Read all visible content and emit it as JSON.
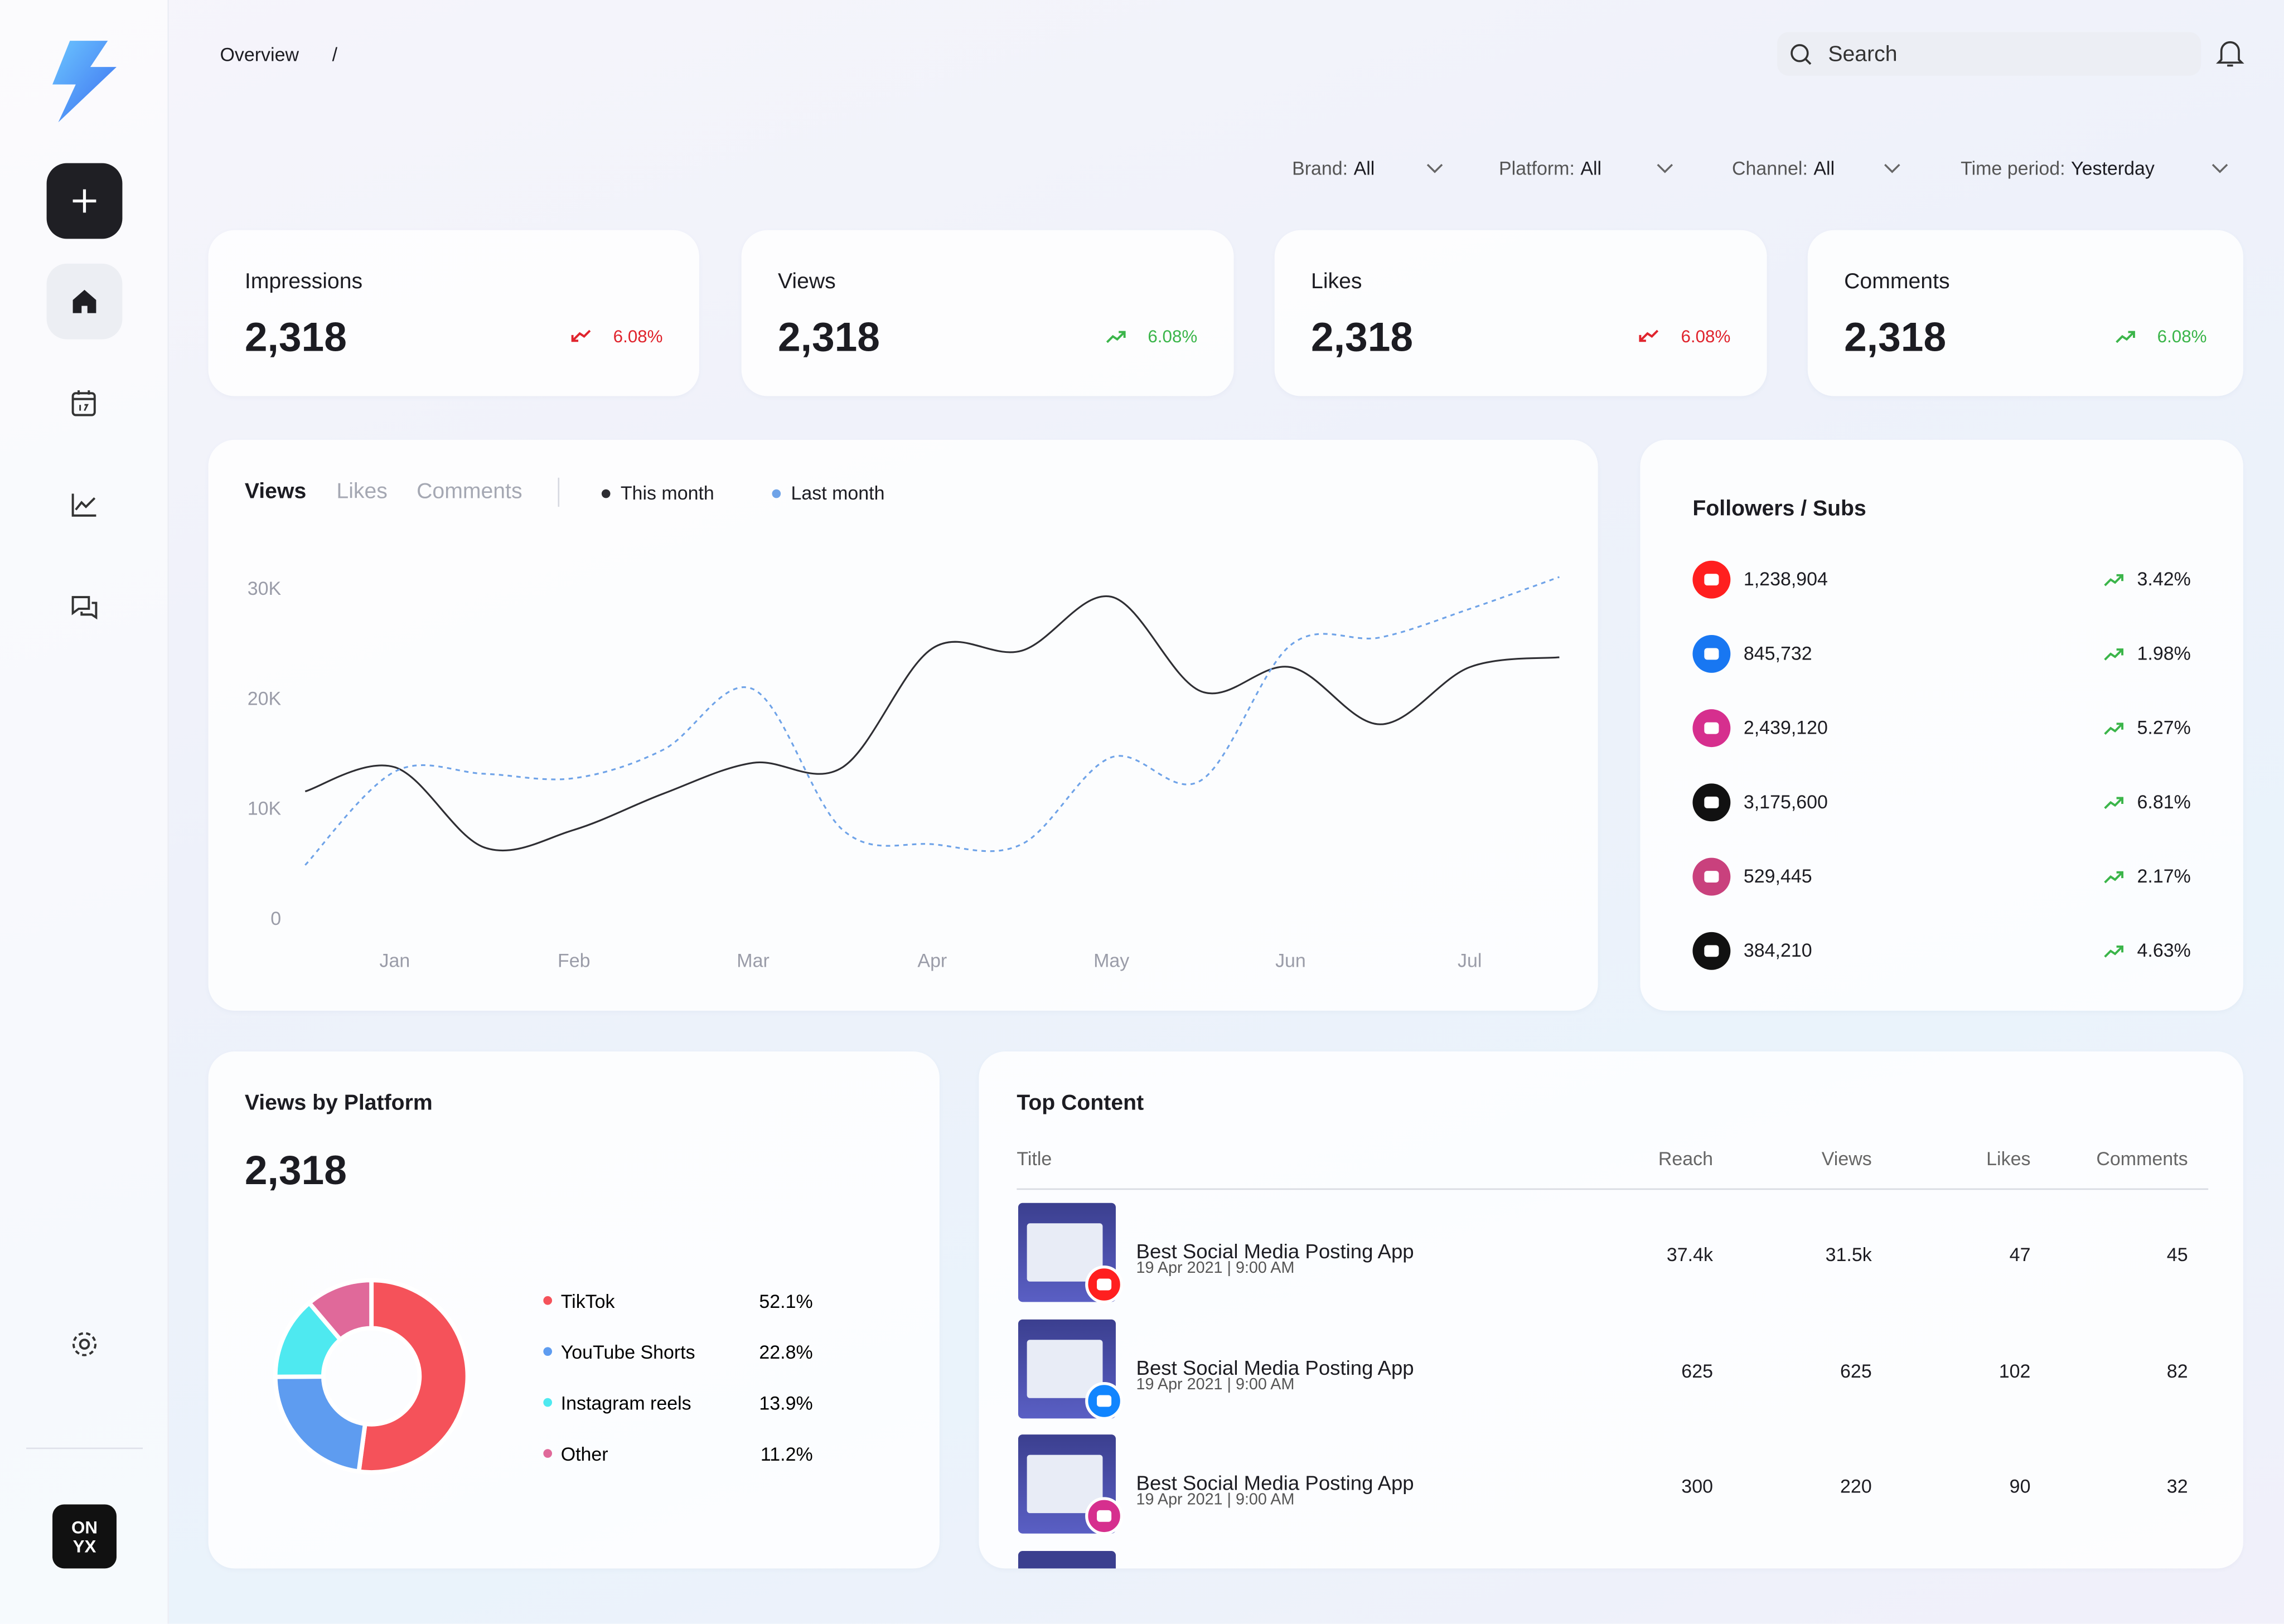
{
  "nav": {
    "logo_lines": [
      "ON",
      "YX"
    ]
  },
  "breadcrumb": [
    "Overview",
    "/"
  ],
  "search_placeholder": "Search",
  "filters": [
    {
      "label": "Brand:",
      "value": "All"
    },
    {
      "label": "Platform:",
      "value": "All"
    },
    {
      "label": "Channel:",
      "value": "All"
    },
    {
      "label": "Time period:",
      "value": "Yesterday"
    }
  ],
  "kpis": [
    {
      "title": "Impressions",
      "value": "2,318",
      "change": "6.08%",
      "trend": "down"
    },
    {
      "title": "Views",
      "value": "2,318",
      "change": "6.08%",
      "trend": "up"
    },
    {
      "title": "Likes",
      "value": "2,318",
      "change": "6.08%",
      "trend": "down"
    },
    {
      "title": "Comments",
      "value": "2,318",
      "change": "6.08%",
      "trend": "up"
    }
  ],
  "chart_data": [
    {
      "type": "line",
      "tabs": [
        "Views",
        "Likes",
        "Comments"
      ],
      "active_tab": 0,
      "categories": [
        null,
        "Jan",
        null,
        "Feb",
        null,
        "Mar",
        null,
        "Apr",
        null,
        "May",
        null,
        "Jun",
        null,
        "Jul",
        null
      ],
      "series": [
        {
          "name": "This month",
          "color": "#2e2e33",
          "style": "solid",
          "values": [
            11600,
            13800,
            6500,
            8100,
            11400,
            14200,
            13800,
            24600,
            24400,
            29300,
            20700,
            22900,
            17700,
            22900,
            23800
          ]
        },
        {
          "name": "Last month",
          "color": "#6fa3e8",
          "style": "dashed",
          "values": [
            4900,
            13400,
            13200,
            12800,
            15400,
            20900,
            8100,
            6800,
            6800,
            14700,
            12600,
            24900,
            25600,
            28200,
            31100
          ]
        }
      ],
      "ylim": [
        0,
        32000
      ],
      "yticks": [
        0,
        {
          "value": 10000,
          "label": "10K"
        },
        {
          "value": 20000,
          "label": "20K"
        },
        {
          "value": 30000,
          "label": "30K"
        }
      ],
      "grid": false
    },
    {
      "type": "pie",
      "title": "Views by Platform",
      "total": "2,318",
      "categories": [
        "TikTok",
        "YouTube Shorts",
        "Instagram reels",
        "Other"
      ],
      "values": [
        52.1,
        22.8,
        13.9,
        11.2
      ],
      "value_labels": [
        "52.1%",
        "22.8%",
        "13.9%",
        "11.2%"
      ],
      "colors": [
        "#f5525a",
        "#5e9cf0",
        "#4ee9f0",
        "#e0699a"
      ]
    }
  ],
  "followers": {
    "title": "Followers / Subs",
    "rows": [
      {
        "platform": "youtube",
        "count": "1,238,904",
        "change": "3.42%"
      },
      {
        "platform": "facebook",
        "count": "845,732",
        "change": "1.98%"
      },
      {
        "platform": "instagram",
        "count": "2,439,120",
        "change": "5.27%"
      },
      {
        "platform": "tiktok",
        "count": "3,175,600",
        "change": "6.81%"
      },
      {
        "platform": "threads",
        "count": "529,445",
        "change": "2.17%"
      },
      {
        "platform": "x",
        "count": "384,210",
        "change": "4.63%"
      }
    ]
  },
  "top_content": {
    "title": "Top Content",
    "columns": [
      "Title",
      "Reach",
      "Views",
      "Likes",
      "Comments"
    ],
    "rows": [
      {
        "platform": "youtube",
        "title": "Best Social Media Posting App",
        "date": "19 Apr 2021 | 9:00 AM",
        "reach": "37.4k",
        "views": "31.5k",
        "likes": "47",
        "comments": "45"
      },
      {
        "platform": "bluesky",
        "title": "Best Social Media Posting App",
        "date": "19 Apr 2021 | 9:00 AM",
        "reach": "625",
        "views": "625",
        "likes": "102",
        "comments": "82"
      },
      {
        "platform": "instagram",
        "title": "Best Social Media Posting App",
        "date": "19 Apr 2021 | 9:00 AM",
        "reach": "300",
        "views": "220",
        "likes": "90",
        "comments": "32"
      }
    ]
  }
}
